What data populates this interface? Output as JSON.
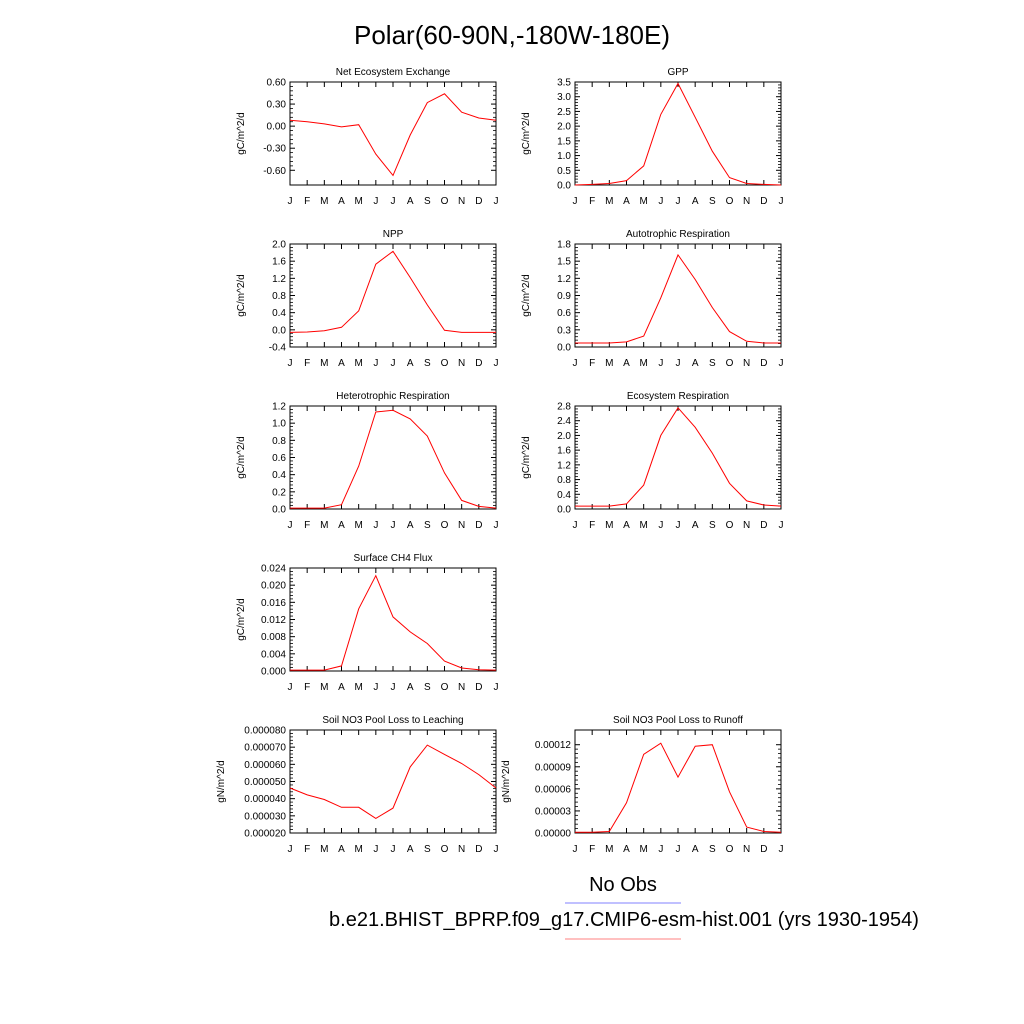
{
  "title": "Polar(60-90N,-180W-180E)",
  "colors": {
    "series": "#ff0000",
    "obs_legend": "#8080ff",
    "model_legend": "#ff8080"
  },
  "legend": {
    "obs_label": "No Obs",
    "model_label": "b.e21.BHIST_BPRP.f09_g17.CMIP6-esm-hist.001 (yrs 1930-1954)"
  },
  "chart_data": [
    {
      "type": "line",
      "title": "Net Ecosystem Exchange",
      "ylabel": "gC/m^2/d",
      "categories": [
        "J",
        "F",
        "M",
        "A",
        "M",
        "J",
        "J",
        "A",
        "S",
        "O",
        "N",
        "D",
        "J"
      ],
      "ylim": [
        -0.8,
        0.6
      ],
      "yticks": [
        0.6,
        0.3,
        0.0,
        -0.3,
        -0.6
      ],
      "ytick_labels": [
        "0.60",
        "0.30",
        "0.00",
        "-0.30",
        "-0.60"
      ],
      "values": [
        0.08,
        0.06,
        0.03,
        -0.01,
        0.02,
        -0.38,
        -0.67,
        -0.12,
        0.32,
        0.44,
        0.19,
        0.11,
        0.08
      ]
    },
    {
      "type": "line",
      "title": "GPP",
      "ylabel": "gC/m^2/d",
      "categories": [
        "J",
        "F",
        "M",
        "A",
        "M",
        "J",
        "J",
        "A",
        "S",
        "O",
        "N",
        "D",
        "J"
      ],
      "ylim": [
        0,
        3.5
      ],
      "yticks": [
        3.5,
        3.0,
        2.5,
        2.0,
        1.5,
        1.0,
        0.5,
        0.0
      ],
      "ytick_labels": [
        "3.5",
        "3.0",
        "2.5",
        "2.0",
        "1.5",
        "1.0",
        "0.5",
        "0.0"
      ],
      "values": [
        0.0,
        0.02,
        0.05,
        0.15,
        0.65,
        2.4,
        3.45,
        2.3,
        1.15,
        0.25,
        0.05,
        0.02,
        0.0
      ]
    },
    {
      "type": "line",
      "title": "NPP",
      "ylabel": "gC/m^2/d",
      "categories": [
        "J",
        "F",
        "M",
        "A",
        "M",
        "J",
        "J",
        "A",
        "S",
        "O",
        "N",
        "D",
        "J"
      ],
      "ylim": [
        -0.4,
        2.0
      ],
      "yticks": [
        2.0,
        1.6,
        1.2,
        0.8,
        0.4,
        0.0,
        -0.4
      ],
      "ytick_labels": [
        "2.0",
        "1.6",
        "1.2",
        "0.8",
        "0.4",
        "0.0",
        "-0.4"
      ],
      "values": [
        -0.06,
        -0.05,
        -0.02,
        0.06,
        0.44,
        1.53,
        1.83,
        1.22,
        0.58,
        -0.01,
        -0.06,
        -0.06,
        -0.06
      ]
    },
    {
      "type": "line",
      "title": "Autotrophic Respiration",
      "ylabel": "gC/m^2/d",
      "categories": [
        "J",
        "F",
        "M",
        "A",
        "M",
        "J",
        "J",
        "A",
        "S",
        "O",
        "N",
        "D",
        "J"
      ],
      "ylim": [
        0,
        1.8
      ],
      "yticks": [
        1.8,
        1.5,
        1.2,
        0.9,
        0.6,
        0.3,
        0.0
      ],
      "ytick_labels": [
        "1.8",
        "1.5",
        "1.2",
        "0.9",
        "0.6",
        "0.3",
        "0.0"
      ],
      "values": [
        0.07,
        0.07,
        0.07,
        0.09,
        0.19,
        0.86,
        1.61,
        1.18,
        0.69,
        0.27,
        0.1,
        0.07,
        0.07
      ]
    },
    {
      "type": "line",
      "title": "Heterotrophic Respiration",
      "ylabel": "gC/m^2/d",
      "categories": [
        "J",
        "F",
        "M",
        "A",
        "M",
        "J",
        "J",
        "A",
        "S",
        "O",
        "N",
        "D",
        "J"
      ],
      "ylim": [
        0,
        1.2
      ],
      "yticks": [
        1.2,
        1.0,
        0.8,
        0.6,
        0.4,
        0.2,
        0.0
      ],
      "ytick_labels": [
        "1.2",
        "1.0",
        "0.8",
        "0.6",
        "0.4",
        "0.2",
        "0.0"
      ],
      "values": [
        0.01,
        0.01,
        0.01,
        0.05,
        0.5,
        1.13,
        1.15,
        1.05,
        0.85,
        0.42,
        0.1,
        0.03,
        0.01
      ]
    },
    {
      "type": "line",
      "title": "Ecosystem Respiration",
      "ylabel": "gC/m^2/d",
      "categories": [
        "J",
        "F",
        "M",
        "A",
        "M",
        "J",
        "J",
        "A",
        "S",
        "O",
        "N",
        "D",
        "J"
      ],
      "ylim": [
        0,
        2.8
      ],
      "yticks": [
        2.8,
        2.4,
        2.0,
        1.6,
        1.2,
        0.8,
        0.4,
        0.0
      ],
      "ytick_labels": [
        "2.8",
        "2.4",
        "2.0",
        "1.6",
        "1.2",
        "0.8",
        "0.4",
        "0.0"
      ],
      "values": [
        0.08,
        0.08,
        0.08,
        0.14,
        0.65,
        2.0,
        2.75,
        2.22,
        1.52,
        0.7,
        0.22,
        0.11,
        0.08
      ]
    },
    {
      "type": "line",
      "title": "Surface CH4 Flux",
      "ylabel": "gC/m^2/d",
      "categories": [
        "J",
        "F",
        "M",
        "A",
        "M",
        "J",
        "J",
        "A",
        "S",
        "O",
        "N",
        "D",
        "J"
      ],
      "ylim": [
        0,
        0.024
      ],
      "yticks": [
        0.024,
        0.02,
        0.016,
        0.012,
        0.008,
        0.004,
        0.0
      ],
      "ytick_labels": [
        "0.024",
        "0.020",
        "0.016",
        "0.012",
        "0.008",
        "0.004",
        "0.000"
      ],
      "values": [
        0.0002,
        0.0002,
        0.0002,
        0.0012,
        0.0145,
        0.0222,
        0.0126,
        0.0091,
        0.0064,
        0.0023,
        0.0007,
        0.0003,
        0.0002
      ]
    },
    {
      "type": "line",
      "title": "Soil NO3 Pool Loss to Leaching",
      "ylabel": "gN/m^2/d",
      "categories": [
        "J",
        "F",
        "M",
        "A",
        "M",
        "J",
        "J",
        "A",
        "S",
        "O",
        "N",
        "D",
        "J"
      ],
      "ylim": [
        2e-05,
        8e-05
      ],
      "yticks": [
        8e-05,
        7e-05,
        6e-05,
        5e-05,
        4e-05,
        3e-05,
        2e-05
      ],
      "ytick_labels": [
        "0.000080",
        "0.000070",
        "0.000060",
        "0.000050",
        "0.000040",
        "0.000030",
        "0.000020"
      ],
      "values": [
        4.62e-05,
        4.22e-05,
        3.95e-05,
        3.5e-05,
        3.5e-05,
        2.85e-05,
        3.45e-05,
        5.85e-05,
        7.12e-05,
        6.58e-05,
        6.05e-05,
        5.4e-05,
        4.62e-05
      ]
    },
    {
      "type": "line",
      "title": "Soil NO3 Pool Loss to Runoff",
      "ylabel": "gN/m^2/d",
      "categories": [
        "J",
        "F",
        "M",
        "A",
        "M",
        "J",
        "J",
        "A",
        "S",
        "O",
        "N",
        "D",
        "J"
      ],
      "ylim": [
        0,
        0.00014
      ],
      "yticks": [
        0.00012,
        9e-05,
        6e-05,
        3e-05,
        0.0
      ],
      "ytick_labels": [
        "0.00012",
        "0.00009",
        "0.00006",
        "0.00003",
        "0.00000"
      ],
      "values": [
        1e-06,
        1e-06,
        2e-06,
        4.1e-05,
        0.000107,
        0.000122,
        7.6e-05,
        0.000118,
        0.00012,
        5.6e-05,
        8e-06,
        2e-06,
        1e-06
      ]
    }
  ]
}
